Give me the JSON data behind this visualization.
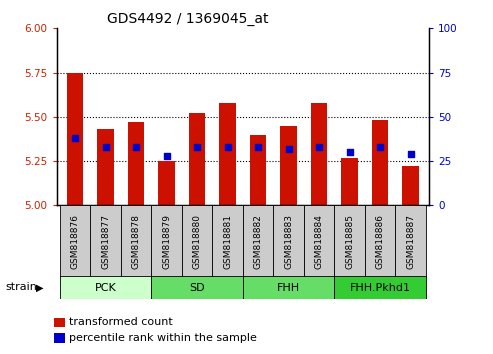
{
  "title": "GDS4492 / 1369045_at",
  "samples": [
    "GSM818876",
    "GSM818877",
    "GSM818878",
    "GSM818879",
    "GSM818880",
    "GSM818881",
    "GSM818882",
    "GSM818883",
    "GSM818884",
    "GSM818885",
    "GSM818886",
    "GSM818887"
  ],
  "bar_values": [
    5.75,
    5.43,
    5.47,
    5.25,
    5.52,
    5.58,
    5.4,
    5.45,
    5.58,
    5.27,
    5.48,
    5.22
  ],
  "percentile_values": [
    38,
    33,
    33,
    28,
    33,
    33,
    33,
    32,
    33,
    30,
    33,
    29
  ],
  "ylim_left": [
    5.0,
    6.0
  ],
  "ylim_right": [
    0,
    100
  ],
  "yticks_left": [
    5.0,
    5.25,
    5.5,
    5.75,
    6.0
  ],
  "yticks_right": [
    0,
    25,
    50,
    75,
    100
  ],
  "groups": [
    {
      "label": "PCK",
      "start": 0,
      "end": 3,
      "color": "#ccffcc"
    },
    {
      "label": "SD",
      "start": 3,
      "end": 6,
      "color": "#66dd66"
    },
    {
      "label": "FHH",
      "start": 6,
      "end": 9,
      "color": "#66dd66"
    },
    {
      "label": "FHH.Pkhd1",
      "start": 9,
      "end": 12,
      "color": "#33cc33"
    }
  ],
  "bar_color": "#cc1100",
  "percentile_color": "#0000cc",
  "bar_base": 5.0,
  "tick_label_color_left": "#cc2200",
  "tick_label_color_right": "#0000cc",
  "legend_items": [
    "transformed count",
    "percentile rank within the sample"
  ],
  "group_label": "strain",
  "sample_box_color": "#cccccc",
  "grid_yticks": [
    5.25,
    5.5,
    5.75
  ]
}
